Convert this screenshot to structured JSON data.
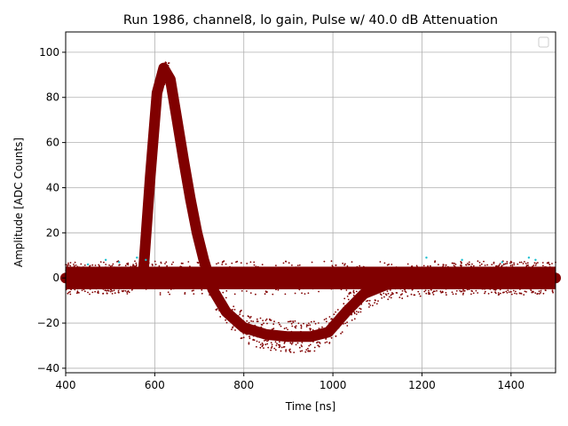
{
  "chart_data": {
    "type": "scatter",
    "title": "Run 1986, channel8, lo gain, Pulse w/ 40.0 dB Attenuation",
    "xlabel": "Time [ns]",
    "ylabel": "Amplitude [ADC Counts]",
    "xlim": [
      400,
      1500
    ],
    "ylim": [
      -42,
      109
    ],
    "xticks": [
      400,
      600,
      800,
      1000,
      1200,
      1400
    ],
    "yticks": [
      -40,
      -20,
      0,
      20,
      40,
      60,
      80,
      100
    ],
    "grid": true,
    "legend": {
      "placement": "top-right",
      "entries": []
    },
    "colors": {
      "main": "#800000",
      "outlier": "#17becf",
      "grid": "#b0b0b0"
    },
    "series": [
      {
        "color": "#800000",
        "description_points": [],
        "x": [
          400,
          560,
          575,
          590,
          605,
          620,
          635,
          650,
          665,
          680,
          695,
          710,
          730,
          760,
          800,
          850,
          900,
          950,
          990,
          1030,
          1070,
          1120,
          1200,
          1300,
          1400,
          1500
        ],
        "y": [
          0,
          0,
          4,
          45,
          82,
          93,
          88,
          70,
          52,
          35,
          20,
          8,
          -5,
          -15,
          -22,
          -25,
          -26,
          -26,
          -24,
          -15,
          -7,
          -3,
          -1,
          0,
          0,
          0
        ]
      }
    ],
    "baseline_band": {
      "center": 0,
      "half_width": 5,
      "x_range": [
        400,
        1500
      ]
    },
    "outlier_points": {
      "color": "#17becf",
      "x": [
        450,
        490,
        520,
        560,
        580,
        1210,
        1290,
        1380,
        1440,
        1455
      ],
      "y": [
        6,
        8,
        7,
        9,
        8,
        9,
        8,
        7,
        9,
        8
      ]
    }
  }
}
